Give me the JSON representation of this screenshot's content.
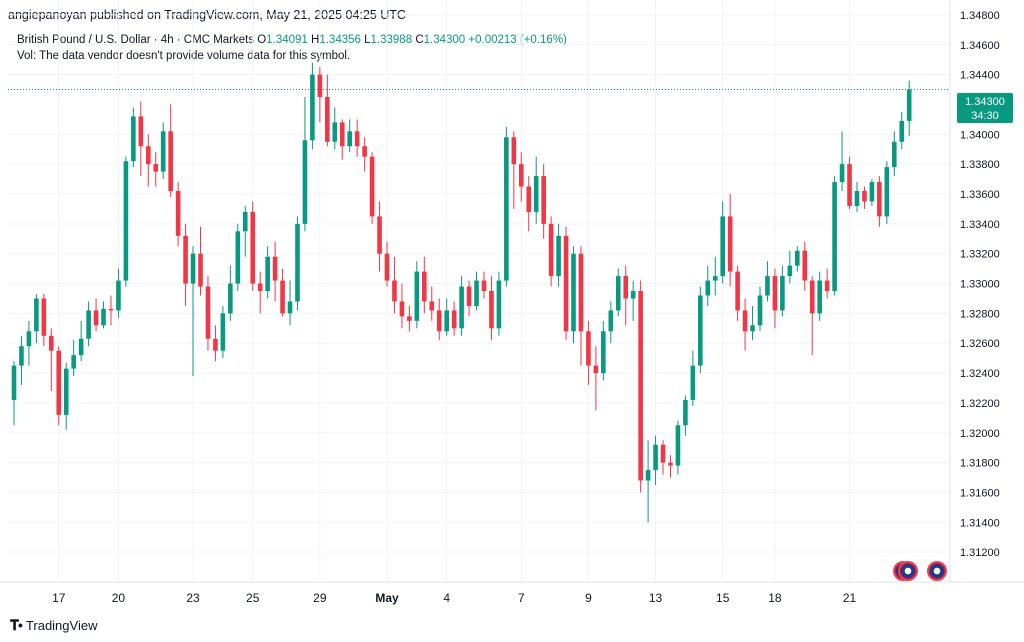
{
  "header": {
    "published": "angiepanoyan published on TradingView.com, May 21, 2025 04:25 UTC"
  },
  "symbol": {
    "name": "British Pound / U.S. Dollar · 4h · CMC Markets",
    "open_label": "O",
    "open": "1.34091",
    "high_label": "H",
    "high": "1.34356",
    "low_label": "L",
    "low": "1.33988",
    "close_label": "C",
    "close": "1.34300",
    "change": "+0.00213 (+0.16%)"
  },
  "volume_note": "Vol: The data vendor doesn't provide volume data for this symbol.",
  "price_tag": {
    "price": "1.34300",
    "countdown": "34:30"
  },
  "footer": {
    "brand": "TradingView"
  },
  "colors": {
    "up": "#089981",
    "down": "#f23645",
    "grid": "#f0f3fa",
    "text": "#131722"
  },
  "chart_data": {
    "type": "candlestick",
    "ylim": [
      1.31,
      1.349
    ],
    "y_ticks": [
      "1.34800",
      "1.34600",
      "1.34400",
      "1.34000",
      "1.33800",
      "1.33600",
      "1.33400",
      "1.33200",
      "1.33000",
      "1.32800",
      "1.32600",
      "1.32400",
      "1.32200",
      "1.32000",
      "1.31800",
      "1.31600",
      "1.31400",
      "1.31200"
    ],
    "x_ticks": [
      {
        "label": "17",
        "index": 6
      },
      {
        "label": "20",
        "index": 14
      },
      {
        "label": "23",
        "index": 24
      },
      {
        "label": "25",
        "index": 32
      },
      {
        "label": "29",
        "index": 41
      },
      {
        "label": "May",
        "index": 50
      },
      {
        "label": "4",
        "index": 58
      },
      {
        "label": "7",
        "index": 68
      },
      {
        "label": "9",
        "index": 77
      },
      {
        "label": "13",
        "index": 86
      },
      {
        "label": "15",
        "index": 95
      },
      {
        "label": "18",
        "index": 102
      },
      {
        "label": "21",
        "index": 112
      }
    ],
    "last_price": 1.343,
    "candles": [
      [
        1.3222,
        1.3245,
        1.3205,
        1.3248
      ],
      [
        1.3245,
        1.3258,
        1.3232,
        1.3265
      ],
      [
        1.3258,
        1.3268,
        1.3245,
        1.3275
      ],
      [
        1.3268,
        1.329,
        1.326,
        1.3293
      ],
      [
        1.329,
        1.3265,
        1.3258,
        1.3293
      ],
      [
        1.3265,
        1.3255,
        1.3228,
        1.327
      ],
      [
        1.3255,
        1.3212,
        1.3205,
        1.3258
      ],
      [
        1.3212,
        1.3243,
        1.3202,
        1.3247
      ],
      [
        1.3243,
        1.3252,
        1.3238,
        1.3262
      ],
      [
        1.3252,
        1.3263,
        1.3248,
        1.3275
      ],
      [
        1.3263,
        1.3282,
        1.3258,
        1.3288
      ],
      [
        1.3282,
        1.3272,
        1.3268,
        1.329
      ],
      [
        1.3272,
        1.3283,
        1.327,
        1.3288
      ],
      [
        1.3283,
        1.3282,
        1.3272,
        1.3292
      ],
      [
        1.3282,
        1.3302,
        1.3277,
        1.331
      ],
      [
        1.3302,
        1.3382,
        1.3298,
        1.3385
      ],
      [
        1.3382,
        1.3412,
        1.3378,
        1.3418
      ],
      [
        1.3412,
        1.3392,
        1.3372,
        1.3422
      ],
      [
        1.3392,
        1.338,
        1.3365,
        1.34
      ],
      [
        1.338,
        1.3375,
        1.3365,
        1.3388
      ],
      [
        1.3375,
        1.3402,
        1.337,
        1.3408
      ],
      [
        1.3402,
        1.3362,
        1.3358,
        1.342
      ],
      [
        1.3362,
        1.3332,
        1.3325,
        1.3368
      ],
      [
        1.3332,
        1.33,
        1.3285,
        1.334
      ],
      [
        1.33,
        1.332,
        1.3238,
        1.3325
      ],
      [
        1.332,
        1.3298,
        1.3292,
        1.3338
      ],
      [
        1.3298,
        1.3263,
        1.3255,
        1.3305
      ],
      [
        1.3263,
        1.3255,
        1.3248,
        1.3272
      ],
      [
        1.3255,
        1.328,
        1.325,
        1.3285
      ],
      [
        1.328,
        1.33,
        1.3275,
        1.3312
      ],
      [
        1.33,
        1.3335,
        1.3295,
        1.334
      ],
      [
        1.3335,
        1.3348,
        1.3318,
        1.3352
      ],
      [
        1.3348,
        1.33,
        1.3295,
        1.3355
      ],
      [
        1.33,
        1.3295,
        1.328,
        1.3308
      ],
      [
        1.3295,
        1.3318,
        1.329,
        1.3325
      ],
      [
        1.3318,
        1.3302,
        1.3288,
        1.3328
      ],
      [
        1.3302,
        1.328,
        1.3278,
        1.331
      ],
      [
        1.328,
        1.3288,
        1.3272,
        1.3302
      ],
      [
        1.3288,
        1.334,
        1.3282,
        1.3345
      ],
      [
        1.334,
        1.3396,
        1.3335,
        1.3425
      ],
      [
        1.3396,
        1.344,
        1.339,
        1.3448
      ],
      [
        1.344,
        1.3425,
        1.3408,
        1.3445
      ],
      [
        1.3425,
        1.3395,
        1.3392,
        1.344
      ],
      [
        1.3395,
        1.3408,
        1.339,
        1.3418
      ],
      [
        1.3408,
        1.3392,
        1.3383,
        1.341
      ],
      [
        1.3392,
        1.3402,
        1.3388,
        1.341
      ],
      [
        1.3402,
        1.3392,
        1.3385,
        1.341
      ],
      [
        1.3392,
        1.3385,
        1.3375,
        1.3398
      ],
      [
        1.3385,
        1.3345,
        1.334,
        1.3388
      ],
      [
        1.3345,
        1.332,
        1.3308,
        1.3355
      ],
      [
        1.332,
        1.3302,
        1.3298,
        1.3328
      ],
      [
        1.3302,
        1.3288,
        1.328,
        1.3318
      ],
      [
        1.3288,
        1.3278,
        1.327,
        1.33
      ],
      [
        1.3278,
        1.3275,
        1.3268,
        1.3285
      ],
      [
        1.3275,
        1.3308,
        1.327,
        1.3315
      ],
      [
        1.3308,
        1.3288,
        1.328,
        1.3318
      ],
      [
        1.3288,
        1.3282,
        1.3275,
        1.3298
      ],
      [
        1.3282,
        1.3268,
        1.3262,
        1.329
      ],
      [
        1.3268,
        1.3282,
        1.3265,
        1.329
      ],
      [
        1.3282,
        1.327,
        1.3265,
        1.3288
      ],
      [
        1.327,
        1.3298,
        1.3265,
        1.3305
      ],
      [
        1.3298,
        1.3285,
        1.3278,
        1.3302
      ],
      [
        1.3285,
        1.3302,
        1.3282,
        1.3308
      ],
      [
        1.3302,
        1.3295,
        1.329,
        1.3308
      ],
      [
        1.3295,
        1.327,
        1.3262,
        1.3305
      ],
      [
        1.327,
        1.3302,
        1.3265,
        1.3308
      ],
      [
        1.3302,
        1.3398,
        1.3298,
        1.3405
      ],
      [
        1.3398,
        1.338,
        1.335,
        1.3402
      ],
      [
        1.338,
        1.3365,
        1.3355,
        1.3388
      ],
      [
        1.3365,
        1.3348,
        1.3335,
        1.3372
      ],
      [
        1.3348,
        1.3372,
        1.334,
        1.3385
      ],
      [
        1.3372,
        1.334,
        1.333,
        1.338
      ],
      [
        1.334,
        1.3305,
        1.3298,
        1.3345
      ],
      [
        1.3305,
        1.3332,
        1.3298,
        1.334
      ],
      [
        1.3332,
        1.3268,
        1.3262,
        1.3338
      ],
      [
        1.3268,
        1.332,
        1.326,
        1.3325
      ],
      [
        1.332,
        1.3268,
        1.3245,
        1.3325
      ],
      [
        1.3268,
        1.3245,
        1.3232,
        1.3275
      ],
      [
        1.3245,
        1.324,
        1.3215,
        1.3258
      ],
      [
        1.324,
        1.3268,
        1.3235,
        1.3275
      ],
      [
        1.3268,
        1.3282,
        1.326,
        1.3288
      ],
      [
        1.3282,
        1.3305,
        1.3278,
        1.331
      ],
      [
        1.3305,
        1.329,
        1.3272,
        1.3312
      ],
      [
        1.329,
        1.3295,
        1.3275,
        1.3302
      ],
      [
        1.3295,
        1.3168,
        1.316,
        1.3302
      ],
      [
        1.3168,
        1.3175,
        1.314,
        1.3195
      ],
      [
        1.3175,
        1.3192,
        1.3165,
        1.3198
      ],
      [
        1.3192,
        1.318,
        1.3172,
        1.3195
      ],
      [
        1.318,
        1.3178,
        1.317,
        1.3185
      ],
      [
        1.3178,
        1.3205,
        1.3172,
        1.3208
      ],
      [
        1.3205,
        1.3222,
        1.3198,
        1.3225
      ],
      [
        1.3222,
        1.3245,
        1.3218,
        1.3255
      ],
      [
        1.3245,
        1.3292,
        1.324,
        1.3298
      ],
      [
        1.3292,
        1.3302,
        1.3285,
        1.3312
      ],
      [
        1.3302,
        1.3305,
        1.3292,
        1.3318
      ],
      [
        1.3305,
        1.3345,
        1.33,
        1.3355
      ],
      [
        1.3345,
        1.3308,
        1.3298,
        1.336
      ],
      [
        1.3308,
        1.3282,
        1.3275,
        1.3312
      ],
      [
        1.3282,
        1.3268,
        1.3255,
        1.329
      ],
      [
        1.3268,
        1.3272,
        1.3262,
        1.3285
      ],
      [
        1.3272,
        1.3292,
        1.3268,
        1.3298
      ],
      [
        1.3292,
        1.3305,
        1.3288,
        1.3315
      ],
      [
        1.3305,
        1.3282,
        1.327,
        1.331
      ],
      [
        1.3282,
        1.3305,
        1.3278,
        1.3312
      ],
      [
        1.3305,
        1.3312,
        1.33,
        1.3322
      ],
      [
        1.3312,
        1.3322,
        1.3308,
        1.3325
      ],
      [
        1.3322,
        1.3302,
        1.3295,
        1.3328
      ],
      [
        1.3302,
        1.328,
        1.3252,
        1.3305
      ],
      [
        1.328,
        1.3302,
        1.3275,
        1.3308
      ],
      [
        1.3302,
        1.3295,
        1.329,
        1.331
      ],
      [
        1.3295,
        1.3368,
        1.3292,
        1.3372
      ],
      [
        1.3368,
        1.338,
        1.3362,
        1.3402
      ],
      [
        1.338,
        1.3352,
        1.335,
        1.3385
      ],
      [
        1.3352,
        1.3362,
        1.3348,
        1.3368
      ],
      [
        1.3362,
        1.3355,
        1.335,
        1.3365
      ],
      [
        1.3355,
        1.3368,
        1.3352,
        1.337
      ],
      [
        1.3368,
        1.3345,
        1.3338,
        1.3372
      ],
      [
        1.3345,
        1.3378,
        1.334,
        1.3382
      ],
      [
        1.3378,
        1.3395,
        1.3372,
        1.3402
      ],
      [
        1.3395,
        1.3409,
        1.339,
        1.3415
      ],
      [
        1.3409,
        1.343,
        1.3399,
        1.3436
      ]
    ]
  }
}
